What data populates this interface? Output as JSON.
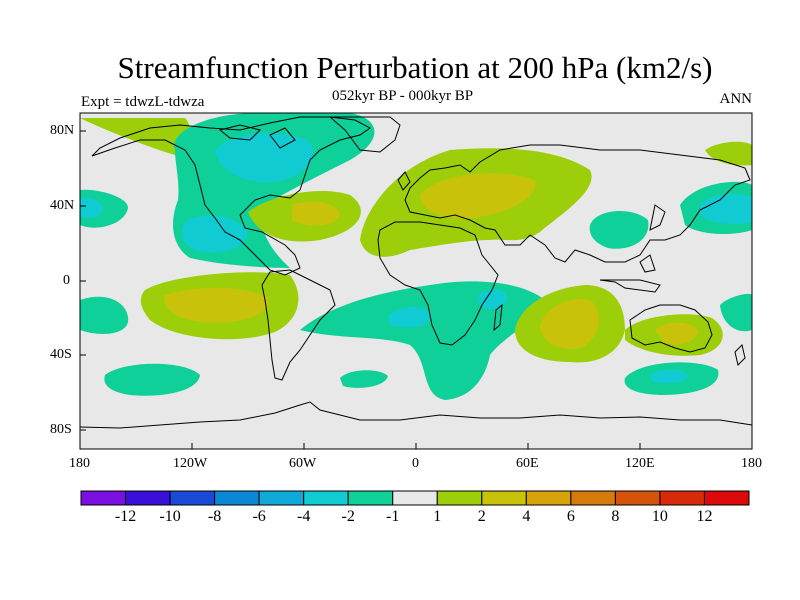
{
  "title": "Streamfunction Perturbation at 200 hPa (km2/s)",
  "subtitle": "052kyr BP - 000kyr BP",
  "experiment": "Expt = tdwzL-tdwza",
  "season": "ANN",
  "map": {
    "projection": "cylindrical equidistant",
    "lon_range": [
      -180,
      180
    ],
    "lat_range": [
      -90,
      90
    ],
    "lon_ticks": [
      "180",
      "120W",
      "60W",
      "0",
      "60E",
      "120E",
      "180"
    ],
    "lat_ticks": [
      "80N",
      "40N",
      "0",
      "40S",
      "80S"
    ],
    "background_color": "#e8e8e8",
    "coastline_color": "#000000"
  },
  "colorbar": {
    "labels": [
      "-12",
      "-10",
      "-8",
      "-6",
      "-4",
      "-2",
      "-1",
      "1",
      "2",
      "4",
      "6",
      "8",
      "10",
      "12"
    ],
    "colors": [
      "#7a10e0",
      "#3a10d8",
      "#1a4ad6",
      "#0a88d6",
      "#10aad8",
      "#10ccd2",
      "#10d09a",
      "#e8e8e8",
      "#9ccf0a",
      "#c8c20a",
      "#d6a40a",
      "#d67a0a",
      "#d6540a",
      "#d62a0a",
      "#dc0a0a"
    ]
  },
  "features": [
    {
      "name": "arctic-canada-negative",
      "level": "-2"
    },
    {
      "name": "north-america-negative-core",
      "level": "-4"
    },
    {
      "name": "eurasia-positive",
      "level": "2"
    },
    {
      "name": "south-atlantic-negative",
      "level": "-2"
    },
    {
      "name": "south-indian-ocean-positive",
      "level": "2"
    },
    {
      "name": "south-pacific-positive",
      "level": "2"
    }
  ]
}
